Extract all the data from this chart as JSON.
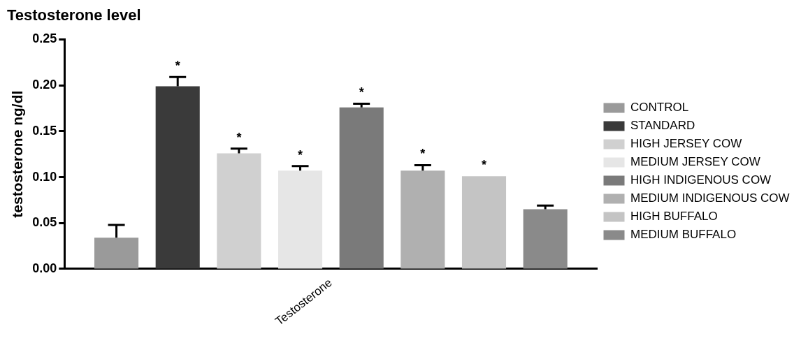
{
  "chart_data": {
    "type": "bar",
    "title": "Testosterone level",
    "ylabel": "testosterone ng/dl",
    "categories": [
      "Testosterone"
    ],
    "series": [
      {
        "name": "CONTROL",
        "color": "#9a9a9a",
        "values": [
          0.034
        ],
        "errors": [
          0.014
        ]
      },
      {
        "name": "STANDARD",
        "color": "#3a3a3a",
        "values": [
          0.199
        ],
        "errors": [
          0.01
        ],
        "value_labels": [
          "*"
        ]
      },
      {
        "name": "HIGH JERSEY COW",
        "color": "#d0d0d0",
        "values": [
          0.126
        ],
        "errors": [
          0.005
        ],
        "value_labels": [
          "*"
        ]
      },
      {
        "name": "MEDIUM JERSEY COW",
        "color": "#e6e6e6",
        "values": [
          0.107
        ],
        "errors": [
          0.005
        ],
        "value_labels": [
          "*"
        ]
      },
      {
        "name": "HIGH INDIGENOUS COW",
        "color": "#7a7a7a",
        "values": [
          0.176
        ],
        "errors": [
          0.004
        ],
        "value_labels": [
          "*"
        ]
      },
      {
        "name": "MEDIUM INDIGENOUS COW",
        "color": "#b0b0b0",
        "values": [
          0.107
        ],
        "errors": [
          0.006
        ],
        "value_labels": [
          "*"
        ]
      },
      {
        "name": "HIGH BUFFALO",
        "color": "#c4c4c4",
        "values": [
          0.101
        ],
        "errors": [
          null
        ],
        "value_labels": [
          "*"
        ]
      },
      {
        "name": "MEDIUM BUFFALO",
        "color": "#8a8a8a",
        "values": [
          0.065
        ],
        "errors": [
          0.004
        ]
      }
    ],
    "ylim": [
      0,
      0.25
    ],
    "yticks": [
      {
        "value": 0,
        "label": "0.00"
      },
      {
        "value": 0.05,
        "label": "0.05"
      },
      {
        "value": 0.1,
        "label": "0.10"
      },
      {
        "value": 0.15,
        "label": "0.15"
      },
      {
        "value": 0.2,
        "label": "0.20"
      },
      {
        "value": 0.25,
        "label": "0.25"
      }
    ],
    "grid": false,
    "legend": "right"
  }
}
